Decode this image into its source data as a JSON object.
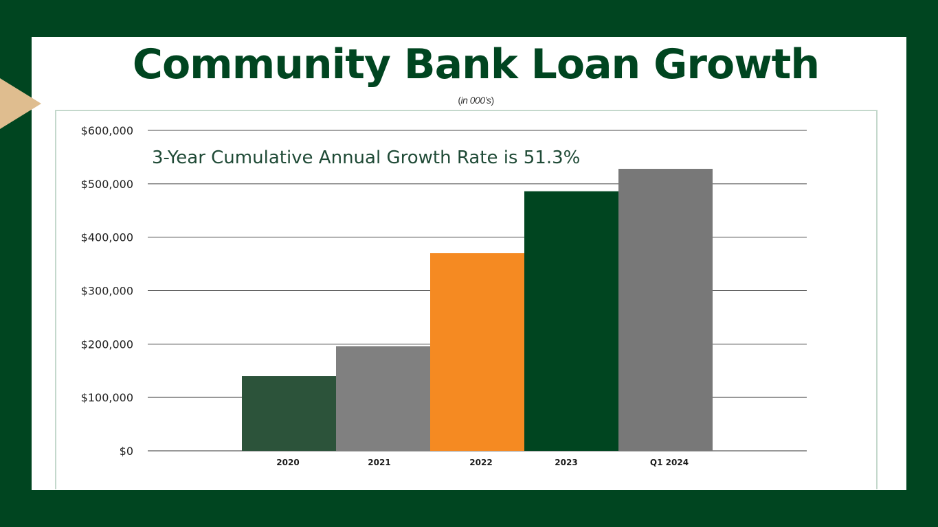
{
  "slide": {
    "title": "Community Bank Loan Growth",
    "subtitle_open": "(",
    "subtitle_italic": "in 000’s",
    "subtitle_close": ")",
    "background_color": "#004520",
    "accent_color": "#dfbd8f"
  },
  "chart_data": {
    "type": "bar",
    "title": "",
    "xlabel": "",
    "ylabel": "",
    "categories": [
      "2020",
      "2021",
      "2022",
      "2023",
      "Q1 2024"
    ],
    "values": [
      140000,
      196000,
      370000,
      486000,
      528000
    ],
    "colors": [
      "#2c533a",
      "#808080",
      "#f58a22",
      "#004520",
      "#787878"
    ],
    "ylim": [
      0,
      600000
    ],
    "yticks": [
      0,
      100000,
      200000,
      300000,
      400000,
      500000,
      600000
    ],
    "ytick_labels": [
      "$0",
      "$100,000",
      "$200,000",
      "$300,000",
      "$400,000",
      "$500,000",
      "$600,000"
    ],
    "grid": true,
    "annotation": "3-Year Cumulative Annual Growth Rate is 51.3%"
  }
}
